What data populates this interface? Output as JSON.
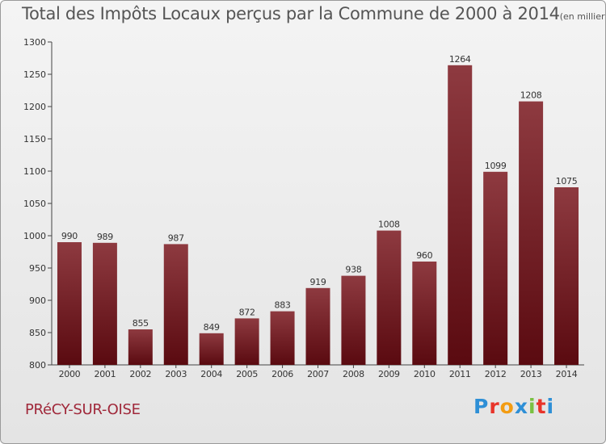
{
  "chart_data": {
    "type": "bar",
    "title": "Total des Impôts Locaux perçus par la Commune de 2000 à 2014",
    "unit_note": "(en milliers d'€)",
    "categories": [
      "2000",
      "2001",
      "2002",
      "2003",
      "2004",
      "2005",
      "2006",
      "2007",
      "2008",
      "2009",
      "2010",
      "2011",
      "2012",
      "2013",
      "2014"
    ],
    "values": [
      990,
      989,
      855,
      987,
      849,
      872,
      883,
      919,
      938,
      1008,
      960,
      1264,
      1099,
      1208,
      1075
    ],
    "ylim": [
      800,
      1300
    ],
    "yticks": [
      800,
      850,
      900,
      950,
      1000,
      1050,
      1100,
      1150,
      1200,
      1250,
      1300
    ],
    "xlabel": "",
    "ylabel": "",
    "grid": false,
    "bar_color": "#6b0f16"
  },
  "footer": {
    "commune": "PRéCY-SUR-OISE",
    "brand_letters": [
      "P",
      "r",
      "o",
      "x",
      "i",
      "t",
      "i"
    ],
    "brand_colors": [
      "#2e8fd6",
      "#e8342a",
      "#f39c12",
      "#2e8fd6",
      "#7ac142",
      "#e8342a",
      "#2e8fd6"
    ]
  }
}
